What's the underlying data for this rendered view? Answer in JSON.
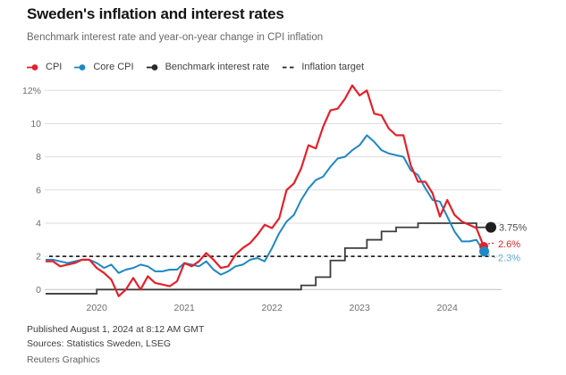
{
  "header": {
    "title": "Sweden's inflation and interest rates",
    "subtitle": "Benchmark interest rate and year-on-year change in CPI inflation"
  },
  "colors": {
    "cpi_red": "#e4212b",
    "core_blue": "#1e87c4",
    "core_blue_label": "#5fa8d5",
    "benchmark_dark": "#3d3d3d",
    "benchmark_dot": "#1f1f1f",
    "target_dash": "#262626",
    "grid": "#dedede",
    "zero_line": "#c0c0c0",
    "tick_text": "#6e6e6e",
    "end_label_gray": "#4d4d4d"
  },
  "legend": {
    "items": [
      {
        "id": "cpi",
        "label": "CPI",
        "marker": "line-dot",
        "color": "#e4212b"
      },
      {
        "id": "core-cpi",
        "label": "Core CPI",
        "marker": "line-dot",
        "color": "#1e87c4"
      },
      {
        "id": "benchmark-rate",
        "label": "Benchmark interest rate",
        "marker": "line-dot",
        "color": "#2a2a2a"
      },
      {
        "id": "inflation-target",
        "label": "Inflation target",
        "marker": "dashes",
        "color": "#262626"
      }
    ]
  },
  "chart_data": {
    "type": "line",
    "x_monthly_start": "2019-06",
    "x_monthly_end": "2024-06",
    "x_ticks": [
      "2020",
      "2021",
      "2022",
      "2023",
      "2024"
    ],
    "y_ticks": [
      0,
      2,
      4,
      6,
      8,
      10,
      12
    ],
    "y_tick_labels": [
      "0",
      "2",
      "4",
      "6",
      "8",
      "10",
      "12%"
    ],
    "ylim": [
      -0.5,
      12.5
    ],
    "grid": true,
    "legend_position": "top",
    "series": [
      {
        "name": "CPI",
        "style": "line",
        "end_label": "2.6%",
        "values": [
          1.7,
          1.7,
          1.4,
          1.5,
          1.6,
          1.8,
          1.8,
          1.3,
          1.0,
          0.6,
          -0.4,
          0.0,
          0.7,
          0.0,
          0.8,
          0.4,
          0.3,
          0.2,
          0.5,
          1.6,
          1.4,
          1.7,
          2.2,
          1.8,
          1.3,
          1.4,
          2.1,
          2.5,
          2.8,
          3.3,
          3.9,
          3.7,
          4.3,
          6.0,
          6.4,
          7.3,
          8.7,
          8.5,
          9.8,
          10.8,
          10.9,
          11.5,
          12.3,
          11.7,
          12.0,
          10.6,
          10.5,
          9.7,
          9.3,
          9.3,
          7.5,
          6.5,
          6.5,
          5.8,
          4.4,
          5.4,
          4.5,
          4.1,
          3.9,
          3.7,
          2.6
        ]
      },
      {
        "name": "Core CPI",
        "style": "line",
        "end_label": "2.3%",
        "values": [
          1.8,
          1.8,
          1.7,
          1.6,
          1.7,
          1.8,
          1.8,
          1.6,
          1.3,
          1.5,
          1.0,
          1.2,
          1.3,
          1.5,
          1.4,
          1.1,
          1.1,
          1.2,
          1.2,
          1.6,
          1.5,
          1.4,
          1.7,
          1.2,
          0.9,
          1.1,
          1.4,
          1.5,
          1.8,
          1.9,
          1.7,
          2.5,
          3.4,
          4.1,
          4.5,
          5.4,
          6.1,
          6.6,
          6.8,
          7.4,
          7.9,
          8.0,
          8.4,
          8.7,
          9.3,
          8.9,
          8.4,
          8.2,
          8.1,
          8.0,
          7.2,
          6.9,
          6.1,
          5.4,
          5.3,
          4.4,
          3.5,
          2.9,
          2.9,
          3.0,
          2.3
        ]
      },
      {
        "name": "Benchmark interest rate",
        "style": "step",
        "end_label": "3.75%",
        "values": [
          -0.25,
          -0.25,
          -0.25,
          -0.25,
          -0.25,
          -0.25,
          -0.25,
          0,
          0,
          0,
          0,
          0,
          0,
          0,
          0,
          0,
          0,
          0,
          0,
          0,
          0,
          0,
          0,
          0,
          0,
          0,
          0,
          0,
          0,
          0,
          0,
          0,
          0,
          0,
          0,
          0.25,
          0.25,
          0.75,
          0.75,
          1.75,
          1.75,
          2.5,
          2.5,
          2.5,
          3.0,
          3.0,
          3.5,
          3.5,
          3.75,
          3.75,
          3.75,
          4.0,
          4.0,
          4.0,
          4.0,
          4.0,
          4.0,
          4.0,
          4.0,
          3.75,
          3.75,
          3.75
        ]
      },
      {
        "name": "Inflation target",
        "style": "dashed-constant",
        "value": 2
      }
    ]
  },
  "footer": {
    "published": "Published August 1, 2024 at 8:12 AM GMT",
    "sources": "Sources: Statistics Sweden, LSEG",
    "credit": "Reuters Graphics"
  }
}
